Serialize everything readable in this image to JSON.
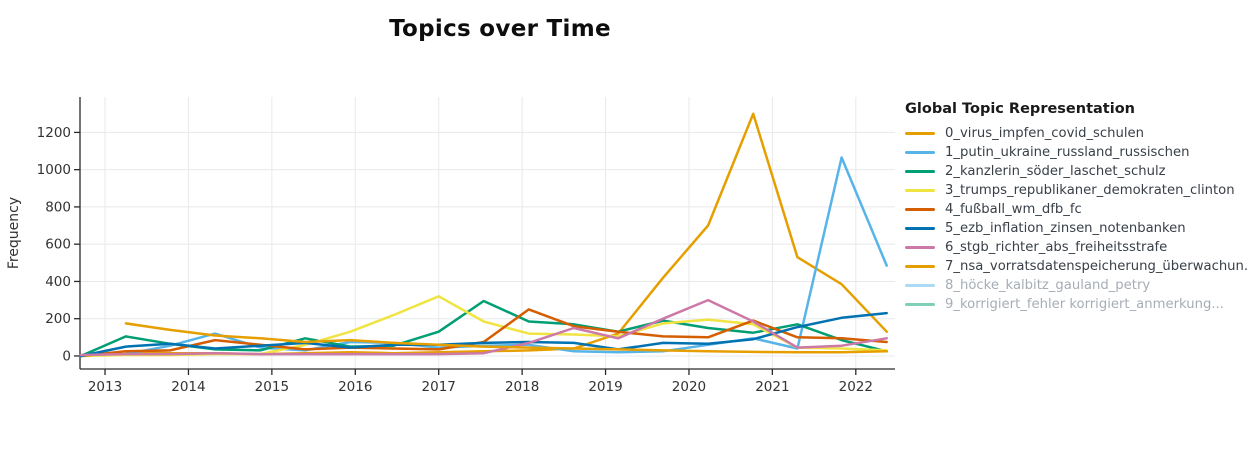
{
  "chart": {
    "title": "Topics over Time",
    "ylabel": "Frequency"
  },
  "legend": {
    "title": "Global Topic Representation",
    "items": [
      {
        "label": "0_virus_impfen_covid_schulen",
        "color": "#E69F00",
        "muted": false
      },
      {
        "label": "1_putin_ukraine_russland_russischen",
        "color": "#56B4E9",
        "muted": false
      },
      {
        "label": "2_kanzlerin_söder_laschet_schulz",
        "color": "#009E73",
        "muted": false
      },
      {
        "label": "3_trumps_republikaner_demokraten_clinton",
        "color": "#F0E442",
        "muted": false
      },
      {
        "label": "4_fußball_wm_dfb_fc",
        "color": "#D55E00",
        "muted": false
      },
      {
        "label": "5_ezb_inflation_zinsen_notenbanken",
        "color": "#0072B2",
        "muted": false
      },
      {
        "label": "6_stgb_richter_abs_freiheitsstrafe",
        "color": "#CC79A7",
        "muted": false
      },
      {
        "label": "7_nsa_vorratsdatenspeicherung_überwachun.",
        "color": "#E69F00",
        "muted": false
      },
      {
        "label": "8_höcke_kalbitz_gauland_petry",
        "color": "#ABDAF4",
        "muted": true
      },
      {
        "label": "9_korrigiert_fehler korrigiert_anmerkung...",
        "color": "#80CFB9",
        "muted": true
      }
    ]
  },
  "chart_data": {
    "type": "line",
    "title": "Topics over Time",
    "xlabel": "",
    "ylabel": "Frequency",
    "legend_position": "right",
    "grid": true,
    "xlim": [
      2012.7,
      2022.47
    ],
    "ylim": [
      -70,
      1390
    ],
    "x_ticks": [
      "2013",
      "2014",
      "2015",
      "2016",
      "2017",
      "2018",
      "2019",
      "2020",
      "2021",
      "2022"
    ],
    "x_tick_values": [
      2013,
      2014,
      2015,
      2016,
      2017,
      2018,
      2019,
      2020,
      2021,
      2022
    ],
    "y_ticks": [
      "0",
      "200",
      "400",
      "600",
      "800",
      "1000",
      "1200"
    ],
    "y_tick_values": [
      0,
      200,
      400,
      600,
      800,
      1000,
      1200
    ],
    "x": [
      2012.71,
      2013.25,
      2013.78,
      2014.32,
      2014.86,
      2015.4,
      2015.94,
      2016.46,
      2017.0,
      2017.54,
      2018.08,
      2018.62,
      2019.15,
      2019.69,
      2020.23,
      2020.77,
      2021.3,
      2021.83,
      2022.37
    ],
    "series": [
      {
        "name": "0_virus_impfen_covid_schulen",
        "color": "#E69F00",
        "visible": true,
        "values": [
          null,
          20,
          15,
          15,
          10,
          15,
          20,
          15,
          20,
          25,
          30,
          40,
          120,
          420,
          700,
          1300,
          530,
          385,
          130
        ]
      },
      {
        "name": "1_putin_ukraine_russland_russischen",
        "color": "#56B4E9",
        "visible": true,
        "values": [
          0,
          10,
          55,
          120,
          45,
          30,
          75,
          70,
          45,
          55,
          60,
          25,
          20,
          25,
          60,
          95,
          40,
          1065,
          485
        ]
      },
      {
        "name": "2_kanzlerin_söder_laschet_schulz",
        "color": "#009E73",
        "visible": true,
        "values": [
          0,
          105,
          65,
          35,
          30,
          95,
          50,
          55,
          130,
          295,
          185,
          170,
          130,
          190,
          150,
          125,
          170,
          85,
          25
        ]
      },
      {
        "name": "3_trumps_republikaner_demokraten_clinton",
        "color": "#F0E442",
        "visible": true,
        "values": [
          0,
          5,
          5,
          10,
          10,
          60,
          130,
          220,
          320,
          185,
          120,
          115,
          105,
          175,
          195,
          170,
          45,
          40,
          30
        ]
      },
      {
        "name": "4_fußball_wm_dfb_fc",
        "color": "#D55E00",
        "visible": true,
        "values": [
          0,
          25,
          30,
          85,
          60,
          35,
          45,
          40,
          35,
          75,
          250,
          160,
          130,
          105,
          100,
          190,
          100,
          95,
          75
        ]
      },
      {
        "name": "5_ezb_inflation_zinsen_notenbanken",
        "color": "#0072B2",
        "visible": true,
        "values": [
          0,
          50,
          65,
          40,
          55,
          70,
          45,
          60,
          60,
          70,
          75,
          70,
          35,
          70,
          65,
          90,
          155,
          205,
          230
        ]
      },
      {
        "name": "6_stgb_richter_abs_freiheitsstrafe",
        "color": "#CC79A7",
        "visible": true,
        "values": [
          5,
          10,
          10,
          15,
          10,
          10,
          10,
          10,
          10,
          15,
          70,
          150,
          95,
          200,
          300,
          185,
          45,
          55,
          95
        ]
      },
      {
        "name": "7_nsa_vorratsdatenspeicherung_überwachun.",
        "color": "#E69F00",
        "visible": true,
        "values": [
          null,
          175,
          140,
          110,
          95,
          75,
          85,
          70,
          60,
          50,
          45,
          40,
          35,
          30,
          25,
          22,
          20,
          20,
          25
        ]
      },
      {
        "name": "8_höcke_kalbitz_gauland_petry",
        "color": "#56B4E9",
        "visible": false,
        "values": []
      },
      {
        "name": "9_korrigiert_fehler korrigiert_anmerkung...",
        "color": "#009E73",
        "visible": false,
        "values": []
      }
    ]
  }
}
